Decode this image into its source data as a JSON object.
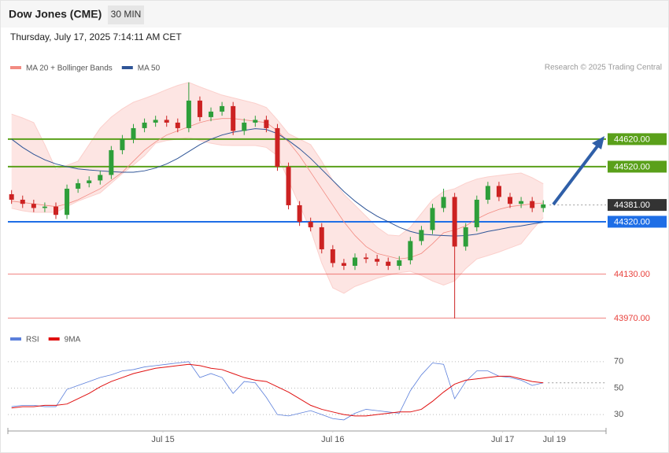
{
  "chart_data": {
    "type": "candlestick",
    "title": "Dow Jones (CME)",
    "timeframe": "30 MIN",
    "subtitle": "Thursday, July 17, 2025 7:14:11 AM CET",
    "source": "Research © 2025 Trading Central",
    "x": [
      1,
      4,
      7,
      10,
      13,
      16,
      19,
      22,
      25,
      28,
      31,
      34,
      37,
      40,
      43,
      46,
      49,
      52,
      55,
      58,
      61,
      64,
      67,
      70,
      73,
      76,
      79,
      82,
      85,
      88,
      91,
      94,
      97,
      100,
      103,
      106,
      109,
      112,
      115,
      118,
      121,
      124,
      127,
      130,
      133,
      136,
      139,
      142,
      145
    ],
    "xlim": [
      0,
      162
    ],
    "xticks": [
      {
        "value": 42,
        "label": "Jul 15"
      },
      {
        "value": 88,
        "label": "Jul 16"
      },
      {
        "value": 134,
        "label": "Jul 17"
      },
      {
        "value": 148,
        "label": "Jul 19"
      }
    ],
    "ylim": [
      43940,
      44854
    ],
    "open": [
      44420,
      44400,
      44385,
      44370,
      44375,
      44345,
      44440,
      44460,
      44470,
      44490,
      44580,
      44620,
      44660,
      44680,
      44690,
      44680,
      44660,
      44760,
      44700,
      44720,
      44740,
      44650,
      44680,
      44690,
      44660,
      44520,
      44380,
      44320,
      44300,
      44220,
      44170,
      44160,
      44190,
      44185,
      44175,
      44160,
      44180,
      44250,
      44290,
      44370,
      44410,
      44230,
      44300,
      44400,
      44450,
      44410,
      44385,
      44395,
      44370
    ],
    "high": [
      44435,
      44415,
      44400,
      44390,
      44390,
      44455,
      44475,
      44485,
      44505,
      44595,
      44635,
      44675,
      44695,
      44705,
      44705,
      44695,
      44826,
      44775,
      44735,
      44755,
      44755,
      44695,
      44705,
      44705,
      44675,
      44535,
      44395,
      44335,
      44315,
      44235,
      44185,
      44205,
      44205,
      44200,
      44190,
      44195,
      44265,
      44305,
      44385,
      44440,
      44425,
      44315,
      44415,
      44465,
      44465,
      44425,
      44410,
      44410,
      44398
    ],
    "low": [
      44385,
      44370,
      44355,
      44355,
      44330,
      44330,
      44425,
      44445,
      44455,
      44475,
      44565,
      44605,
      44645,
      44665,
      44665,
      44645,
      44645,
      44685,
      44685,
      44705,
      44635,
      44635,
      44665,
      44645,
      44505,
      44365,
      44305,
      44285,
      44205,
      44155,
      44145,
      44145,
      44170,
      44160,
      44145,
      44145,
      44165,
      44235,
      44275,
      44355,
      43969,
      44215,
      44285,
      44385,
      44395,
      44370,
      44370,
      44355,
      44355
    ],
    "close": [
      44400,
      44385,
      44370,
      44375,
      44345,
      44440,
      44460,
      44470,
      44490,
      44580,
      44620,
      44660,
      44680,
      44690,
      44680,
      44660,
      44760,
      44700,
      44720,
      44740,
      44650,
      44680,
      44690,
      44660,
      44520,
      44380,
      44320,
      44300,
      44220,
      44170,
      44160,
      44190,
      44185,
      44175,
      44160,
      44180,
      44250,
      44290,
      44370,
      44410,
      44230,
      44300,
      44400,
      44450,
      44410,
      44385,
      44395,
      44370,
      44383
    ],
    "up_color": "#2e9e3a",
    "down_color": "#cc2222",
    "series": [
      {
        "name": "MA 20 + Bollinger Bands",
        "color": "#f28b82",
        "values": [
          44395,
          44390,
          44385,
          44380,
          44375,
          44385,
          44400,
          44420,
          44440,
          44470,
          44500,
          44540,
          44580,
          44610,
          44635,
          44650,
          44665,
          44680,
          44690,
          44695,
          44695,
          44690,
          44685,
          44680,
          44650,
          44610,
          44560,
          44500,
          44440,
          44380,
          44320,
          44270,
          44230,
          44205,
          44195,
          44185,
          44190,
          44205,
          44240,
          44280,
          44290,
          44305,
          44330,
          44350,
          44365,
          44375,
          44380,
          44385,
          44388
        ],
        "upper": [
          44711,
          44697,
          44680,
          44600,
          44511,
          44525,
          44540,
          44600,
          44660,
          44700,
          44730,
          44754,
          44768,
          44783,
          44800,
          44815,
          44826,
          44810,
          44795,
          44780,
          44770,
          44760,
          44750,
          44735,
          44690,
          44640,
          44620,
          44600,
          44540,
          44470,
          44420,
          44380,
          44340,
          44300,
          44272,
          44269,
          44300,
          44350,
          44400,
          44430,
          44440,
          44460,
          44475,
          44483,
          44488,
          44493,
          44497,
          44480,
          44458
        ],
        "lower": [
          44369,
          44360,
          44354,
          44354,
          44354,
          44375,
          44395,
          44410,
          44425,
          44460,
          44495,
          44526,
          44560,
          44605,
          44615,
          44620,
          44626,
          44615,
          44605,
          44598,
          44597,
          44597,
          44597,
          44590,
          44560,
          44470,
          44380,
          44290,
          44170,
          44080,
          44060,
          44085,
          44100,
          44115,
          44126,
          44135,
          44140,
          44125,
          44105,
          44090,
          44105,
          44150,
          44185,
          44197,
          44210,
          44225,
          44240,
          44290,
          44335
        ]
      },
      {
        "name": "MA 50",
        "color": "#2f5597",
        "values": [
          44620,
          44590,
          44565,
          44545,
          44530,
          44520,
          44512,
          44508,
          44505,
          44502,
          44500,
          44500,
          44505,
          44515,
          44530,
          44550,
          44575,
          44600,
          44620,
          44635,
          44645,
          44652,
          44658,
          44655,
          44640,
          44615,
          44585,
          44550,
          44510,
          44470,
          44430,
          44395,
          44365,
          44340,
          44320,
          44300,
          44285,
          44275,
          44272,
          44270,
          44268,
          44270,
          44275,
          44285,
          44292,
          44300,
          44305,
          44312,
          44318
        ]
      }
    ],
    "levels": [
      {
        "value": 44620,
        "label": "44620.00",
        "color": "#5aa01a",
        "boxed": true,
        "style": "solid"
      },
      {
        "value": 44520,
        "label": "44520.00",
        "color": "#5aa01a",
        "boxed": true,
        "style": "solid"
      },
      {
        "value": 44381,
        "label": "44381.00",
        "color": "#333333",
        "boxed": true,
        "style": "dotted"
      },
      {
        "value": 44320,
        "label": "44320.00",
        "color": "#1e6ee6",
        "boxed": true,
        "style": "solid"
      },
      {
        "value": 44130,
        "label": "44130.00",
        "color": "#e8413c",
        "boxed": false,
        "style": "solid"
      },
      {
        "value": 43970,
        "label": "43970.00",
        "color": "#e8413c",
        "boxed": false,
        "style": "solid"
      }
    ],
    "rsi": {
      "ylim": [
        20,
        80
      ],
      "yticks": [
        70,
        50,
        30
      ],
      "series": [
        {
          "name": "RSI",
          "color": "#5b7fdb",
          "values": [
            36,
            37,
            37,
            36,
            36,
            49,
            52,
            55,
            58,
            60,
            63,
            64,
            66,
            67,
            68,
            69,
            70,
            58,
            61,
            58,
            46,
            55,
            54,
            43,
            30,
            29,
            31,
            33,
            30,
            27,
            26,
            31,
            34,
            33,
            32,
            31,
            48,
            60,
            69,
            68,
            42,
            55,
            63,
            63,
            59,
            58,
            56,
            52,
            54
          ]
        },
        {
          "name": "9MA",
          "color": "#e01010",
          "values": [
            35,
            36,
            36,
            37,
            37,
            38,
            42,
            46,
            51,
            55,
            58,
            61,
            63,
            65,
            66,
            67,
            68,
            67,
            65,
            64,
            61,
            58,
            56,
            55,
            51,
            47,
            42,
            37,
            34,
            32,
            30,
            29,
            29,
            30,
            31,
            32,
            32,
            34,
            40,
            47,
            53,
            56,
            57,
            58,
            59,
            59,
            57,
            55,
            54
          ]
        }
      ]
    }
  }
}
